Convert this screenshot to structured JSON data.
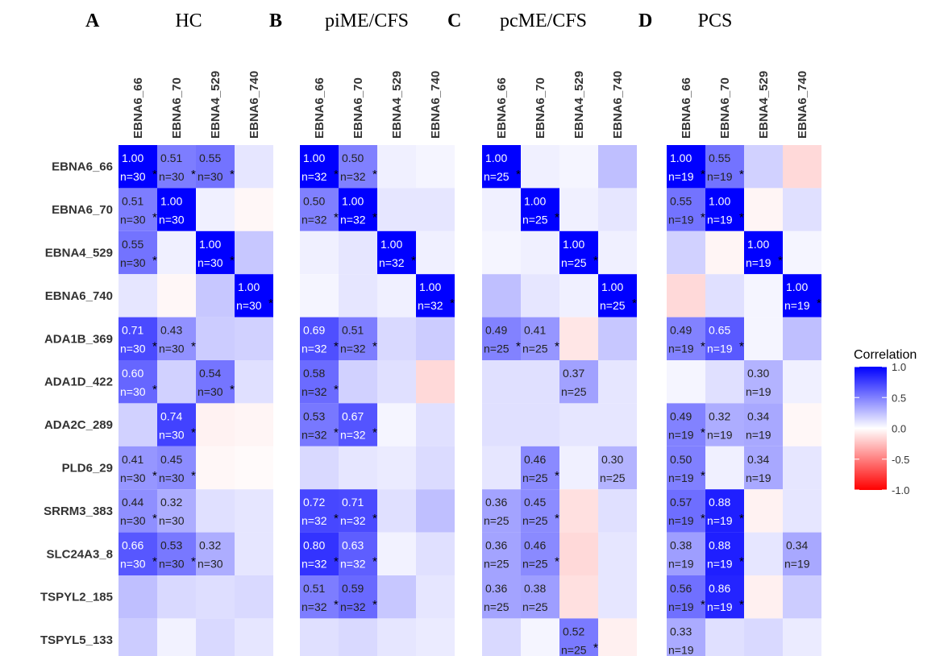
{
  "chart_data": {
    "type": "heatmap",
    "columns": [
      "EBNA6_66",
      "EBNA6_70",
      "EBNA4_529",
      "EBNA6_740"
    ],
    "rows": [
      "EBNA6_66",
      "EBNA6_70",
      "EBNA4_529",
      "EBNA6_740",
      "ADA1B_369",
      "ADA1D_422",
      "ADA2C_289",
      "PLD6_29",
      "SRRM3_383",
      "SLC24A3_8",
      "TSPYL2_185",
      "TSPYL5_133"
    ],
    "legend": {
      "title": "Correlation",
      "ticks": [
        "1.0",
        "0.5",
        "0.0",
        "-0.5",
        "-1.0"
      ],
      "range": [
        -1,
        1
      ],
      "colors": {
        "low": "#ff0000",
        "mid": "#ffffff",
        "high": "#0000ff"
      }
    },
    "panels": [
      {
        "letter": "A",
        "title": "HC",
        "values": [
          [
            1.0,
            0.51,
            0.55,
            0.1
          ],
          [
            0.51,
            1.0,
            0.06,
            -0.03
          ],
          [
            0.55,
            0.06,
            1.0,
            0.22
          ],
          [
            0.1,
            -0.03,
            0.22,
            1.0
          ],
          [
            0.71,
            0.43,
            0.2,
            0.18
          ],
          [
            0.6,
            0.18,
            0.54,
            0.12
          ],
          [
            0.18,
            0.74,
            -0.05,
            -0.04
          ],
          [
            0.41,
            0.45,
            -0.03,
            -0.02
          ],
          [
            0.44,
            0.32,
            0.12,
            0.1
          ],
          [
            0.66,
            0.53,
            0.32,
            0.1
          ],
          [
            0.25,
            0.15,
            0.13,
            0.15
          ],
          [
            0.2,
            0.05,
            0.15,
            0.1
          ]
        ],
        "labels": [
          [
            [
              "1.00",
              "n=30",
              true
            ],
            [
              "0.51",
              "n=30",
              true
            ],
            [
              "0.55",
              "n=30",
              true
            ],
            null
          ],
          [
            [
              "0.51",
              "n=30",
              true
            ],
            [
              "1.00",
              "n=30",
              false
            ],
            null,
            null
          ],
          [
            [
              "0.55",
              "n=30",
              true
            ],
            null,
            [
              "1.00",
              "n=30",
              true
            ],
            null
          ],
          [
            null,
            null,
            null,
            [
              "1.00",
              "n=30",
              true
            ]
          ],
          [
            [
              "0.71",
              "n=30",
              true
            ],
            [
              "0.43",
              "n=30",
              true
            ],
            null,
            null
          ],
          [
            [
              "0.60",
              "n=30",
              true
            ],
            null,
            [
              "0.54",
              "n=30",
              true
            ],
            null
          ],
          [
            null,
            [
              "0.74",
              "n=30",
              true
            ],
            null,
            null
          ],
          [
            [
              "0.41",
              "n=30",
              true
            ],
            [
              "0.45",
              "n=30",
              true
            ],
            null,
            null
          ],
          [
            [
              "0.44",
              "n=30",
              true
            ],
            [
              "0.32",
              "n=30",
              false
            ],
            null,
            null
          ],
          [
            [
              "0.66",
              "n=30",
              true
            ],
            [
              "0.53",
              "n=30",
              true
            ],
            [
              "0.32",
              "n=30",
              false
            ],
            null
          ],
          [
            null,
            null,
            null,
            null
          ],
          [
            null,
            null,
            null,
            null
          ]
        ]
      },
      {
        "letter": "B",
        "title": "piME/CFS",
        "values": [
          [
            1.0,
            0.5,
            0.06,
            0.04
          ],
          [
            0.5,
            1.0,
            0.1,
            0.1
          ],
          [
            0.06,
            0.1,
            1.0,
            0.06
          ],
          [
            0.04,
            0.1,
            0.06,
            1.0
          ],
          [
            0.69,
            0.51,
            0.15,
            0.2
          ],
          [
            0.58,
            0.18,
            0.12,
            -0.15
          ],
          [
            0.53,
            0.67,
            0.04,
            0.12
          ],
          [
            0.15,
            0.1,
            0.08,
            0.14
          ],
          [
            0.72,
            0.71,
            0.12,
            0.25
          ],
          [
            0.8,
            0.63,
            0.05,
            0.12
          ],
          [
            0.51,
            0.59,
            0.22,
            0.1
          ],
          [
            0.12,
            0.15,
            0.1,
            0.08
          ]
        ],
        "labels": [
          [
            [
              "1.00",
              "n=32",
              true
            ],
            [
              "0.50",
              "n=32",
              true
            ],
            null,
            null
          ],
          [
            [
              "0.50",
              "n=32",
              true
            ],
            [
              "1.00",
              "n=32",
              true
            ],
            null,
            null
          ],
          [
            null,
            null,
            [
              "1.00",
              "n=32",
              true
            ],
            null
          ],
          [
            null,
            null,
            null,
            [
              "1.00",
              "n=32",
              true
            ]
          ],
          [
            [
              "0.69",
              "n=32",
              true
            ],
            [
              "0.51",
              "n=32",
              true
            ],
            null,
            null
          ],
          [
            [
              "0.58",
              "n=32",
              true
            ],
            null,
            null,
            null
          ],
          [
            [
              "0.53",
              "n=32",
              true
            ],
            [
              "0.67",
              "n=32",
              true
            ],
            null,
            null
          ],
          [
            null,
            null,
            null,
            null
          ],
          [
            [
              "0.72",
              "n=32",
              true
            ],
            [
              "0.71",
              "n=32",
              true
            ],
            null,
            null
          ],
          [
            [
              "0.80",
              "n=32",
              true
            ],
            [
              "0.63",
              "n=32",
              true
            ],
            null,
            null
          ],
          [
            [
              "0.51",
              "n=32",
              true
            ],
            [
              "0.59",
              "n=32",
              true
            ],
            null,
            null
          ],
          [
            null,
            null,
            null,
            null
          ]
        ]
      },
      {
        "letter": "C",
        "title": "pcME/CFS",
        "values": [
          [
            1.0,
            0.06,
            0.04,
            0.25
          ],
          [
            0.06,
            1.0,
            0.06,
            0.1
          ],
          [
            0.04,
            0.06,
            1.0,
            0.06
          ],
          [
            0.25,
            0.1,
            0.06,
            1.0
          ],
          [
            0.49,
            0.41,
            -0.1,
            0.22
          ],
          [
            0.12,
            0.12,
            0.37,
            0.1
          ],
          [
            0.12,
            0.12,
            0.1,
            0.1
          ],
          [
            0.1,
            0.46,
            0.06,
            0.3
          ],
          [
            0.36,
            0.45,
            -0.12,
            0.12
          ],
          [
            0.36,
            0.46,
            -0.15,
            0.1
          ],
          [
            0.36,
            0.38,
            -0.12,
            0.1
          ],
          [
            0.15,
            0.04,
            0.52,
            -0.06
          ]
        ],
        "labels": [
          [
            [
              "1.00",
              "n=25",
              true
            ],
            null,
            null,
            null
          ],
          [
            null,
            [
              "1.00",
              "n=25",
              true
            ],
            null,
            null
          ],
          [
            null,
            null,
            [
              "1.00",
              "n=25",
              true
            ],
            null
          ],
          [
            null,
            null,
            null,
            [
              "1.00",
              "n=25",
              true
            ]
          ],
          [
            [
              "0.49",
              "n=25",
              true
            ],
            [
              "0.41",
              "n=25",
              true
            ],
            null,
            null
          ],
          [
            null,
            null,
            [
              "0.37",
              "n=25",
              false
            ],
            null
          ],
          [
            null,
            null,
            null,
            null
          ],
          [
            null,
            [
              "0.46",
              "n=25",
              true
            ],
            null,
            [
              "0.30",
              "n=25",
              false
            ]
          ],
          [
            [
              "0.36",
              "n=25",
              false
            ],
            [
              "0.45",
              "n=25",
              true
            ],
            null,
            null
          ],
          [
            [
              "0.36",
              "n=25",
              false
            ],
            [
              "0.46",
              "n=25",
              true
            ],
            null,
            null
          ],
          [
            [
              "0.36",
              "n=25",
              false
            ],
            [
              "0.38",
              "n=25",
              false
            ],
            null,
            null
          ],
          [
            null,
            null,
            [
              "0.52",
              "n=25",
              true
            ],
            null
          ]
        ]
      },
      {
        "letter": "D",
        "title": "PCS",
        "values": [
          [
            1.0,
            0.55,
            0.18,
            -0.15
          ],
          [
            0.55,
            1.0,
            -0.04,
            0.12
          ],
          [
            0.18,
            -0.04,
            1.0,
            0.04
          ],
          [
            -0.15,
            0.12,
            0.04,
            1.0
          ],
          [
            0.49,
            0.65,
            0.04,
            0.25
          ],
          [
            0.04,
            0.12,
            0.3,
            0.06
          ],
          [
            0.49,
            0.32,
            0.34,
            -0.03
          ],
          [
            0.5,
            0.06,
            0.34,
            0.1
          ],
          [
            0.57,
            0.88,
            -0.05,
            0.1
          ],
          [
            0.38,
            0.88,
            0.1,
            0.34
          ],
          [
            0.56,
            0.86,
            -0.06,
            0.2
          ],
          [
            0.33,
            0.12,
            0.15,
            0.08
          ]
        ],
        "labels": [
          [
            [
              "1.00",
              "n=19",
              true
            ],
            [
              "0.55",
              "n=19",
              true
            ],
            null,
            null
          ],
          [
            [
              "0.55",
              "n=19",
              true
            ],
            [
              "1.00",
              "n=19",
              true
            ],
            null,
            null
          ],
          [
            null,
            null,
            [
              "1.00",
              "n=19",
              true
            ],
            null
          ],
          [
            null,
            null,
            null,
            [
              "1.00",
              "n=19",
              true
            ]
          ],
          [
            [
              "0.49",
              "n=19",
              true
            ],
            [
              "0.65",
              "n=19",
              true
            ],
            null,
            null
          ],
          [
            null,
            null,
            [
              "0.30",
              "n=19",
              false
            ],
            null
          ],
          [
            [
              "0.49",
              "n=19",
              true
            ],
            [
              "0.32",
              "n=19",
              false
            ],
            [
              "0.34",
              "n=19",
              false
            ],
            null
          ],
          [
            [
              "0.50",
              "n=19",
              true
            ],
            null,
            [
              "0.34",
              "n=19",
              false
            ],
            null
          ],
          [
            [
              "0.57",
              "n=19",
              true
            ],
            [
              "0.88",
              "n=19",
              true
            ],
            null,
            null
          ],
          [
            [
              "0.38",
              "n=19",
              false
            ],
            [
              "0.88",
              "n=19",
              true
            ],
            null,
            [
              "0.34",
              "n=19",
              false
            ]
          ],
          [
            [
              "0.56",
              "n=19",
              true
            ],
            [
              "0.86",
              "n=19",
              true
            ],
            null,
            null
          ],
          [
            [
              "0.33",
              "n=19",
              false
            ],
            null,
            null,
            null
          ]
        ]
      }
    ]
  }
}
